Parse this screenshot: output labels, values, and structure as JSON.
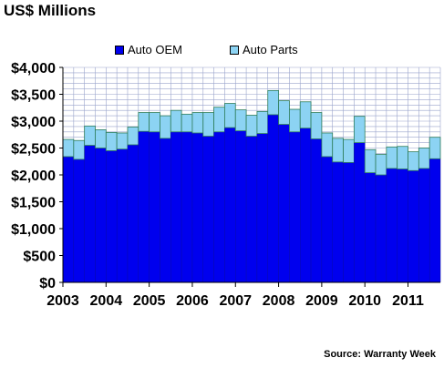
{
  "chart_data": {
    "type": "bar",
    "stacked": true,
    "title": "US$ Millions",
    "source": "Source: Warranty Week",
    "xlabel": "",
    "ylabel": "",
    "ylim": [
      0,
      4000
    ],
    "y_ticks": [
      "$0",
      "$500",
      "$1,000",
      "$1,500",
      "$2,000",
      "$2,500",
      "$3,000",
      "$3,500",
      "$4,000"
    ],
    "x_tick_labels": [
      "2003",
      "2004",
      "2005",
      "2006",
      "2007",
      "2008",
      "2009",
      "2010",
      "2011"
    ],
    "grid": true,
    "legend_position": "top",
    "colors": {
      "Auto OEM": "#0000ee",
      "Auto Parts": "#8cd3f3"
    },
    "categories": [
      "2003 Q1",
      "2003 Q2",
      "2003 Q3",
      "2003 Q4",
      "2004 Q1",
      "2004 Q2",
      "2004 Q3",
      "2004 Q4",
      "2005 Q1",
      "2005 Q2",
      "2005 Q3",
      "2005 Q4",
      "2006 Q1",
      "2006 Q2",
      "2006 Q3",
      "2006 Q4",
      "2007 Q1",
      "2007 Q2",
      "2007 Q3",
      "2007 Q4",
      "2008 Q1",
      "2008 Q2",
      "2008 Q3",
      "2008 Q4",
      "2009 Q1",
      "2009 Q2",
      "2009 Q3",
      "2009 Q4",
      "2010 Q1",
      "2010 Q2",
      "2010 Q3",
      "2010 Q4",
      "2011 Q1",
      "2011 Q2",
      "2011 Q3"
    ],
    "series": [
      {
        "name": "Auto OEM",
        "values": [
          2340,
          2290,
          2550,
          2500,
          2450,
          2480,
          2560,
          2810,
          2800,
          2680,
          2800,
          2800,
          2780,
          2720,
          2800,
          2880,
          2820,
          2720,
          2770,
          3120,
          2940,
          2800,
          2870,
          2670,
          2340,
          2240,
          2230,
          2600,
          2040,
          2000,
          2120,
          2110,
          2080,
          2120,
          2300
        ]
      },
      {
        "name": "Auto Parts",
        "values": [
          320,
          350,
          360,
          340,
          340,
          300,
          330,
          350,
          360,
          420,
          400,
          330,
          380,
          440,
          460,
          450,
          390,
          390,
          410,
          450,
          440,
          420,
          490,
          490,
          440,
          440,
          430,
          490,
          430,
          380,
          400,
          420,
          350,
          380,
          400
        ]
      }
    ]
  }
}
